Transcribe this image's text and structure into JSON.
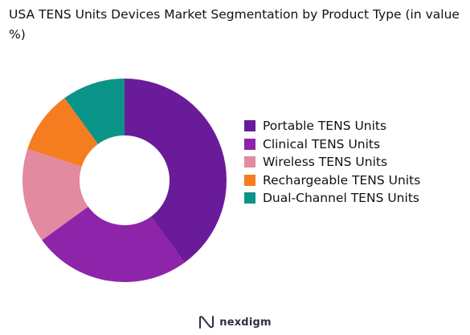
{
  "chart_data": {
    "type": "pie",
    "title": "USA TENS Units Devices Market Segmentation by Product Type (in value %)",
    "categories": [
      "Portable TENS Units",
      "Clinical TENS Units",
      "Wireless TENS Units",
      "Rechargeable TENS Units",
      "Dual-Channel TENS Units"
    ],
    "values": [
      40,
      25,
      15,
      10,
      10
    ],
    "colors": [
      "#6a1b9a",
      "#8e24aa",
      "#e28aa0",
      "#f57c1f",
      "#0a9488"
    ],
    "donut": true,
    "legend_position": "right"
  },
  "footer": {
    "logo_text": "nexdigm",
    "logo_icon": "nexdigm-logo-icon"
  }
}
